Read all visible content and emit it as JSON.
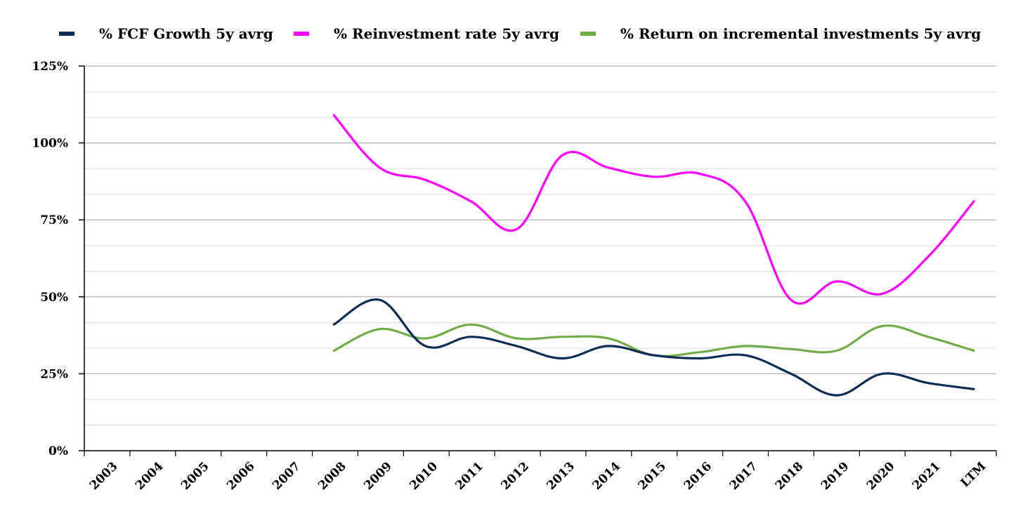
{
  "chart_data": {
    "type": "line",
    "title": "",
    "xlabel": "",
    "ylabel": "",
    "categories": [
      "2003",
      "2004",
      "2005",
      "2006",
      "2007",
      "2008",
      "2009",
      "2010",
      "2011",
      "2012",
      "2013",
      "2014",
      "2015",
      "2016",
      "2017",
      "2018",
      "2019",
      "2020",
      "2021",
      "LTM"
    ],
    "ylim": [
      0,
      125
    ],
    "yticks": [
      {
        "value": 0,
        "label": "0%"
      },
      {
        "value": 25,
        "label": "25%"
      },
      {
        "value": 50,
        "label": "50%"
      },
      {
        "value": 75,
        "label": "75%"
      },
      {
        "value": 100,
        "label": "100%"
      },
      {
        "value": 125,
        "label": "125%"
      }
    ],
    "minor_gridlines_step": 8.33,
    "grid": true,
    "legend_position": "top",
    "series": [
      {
        "name": "% FCF Growth 5y avrg",
        "color": "#0d2d56",
        "values": [
          null,
          null,
          null,
          null,
          null,
          41,
          49,
          34,
          37,
          34,
          30,
          34,
          31,
          30,
          31,
          25,
          18,
          25,
          22,
          20
        ]
      },
      {
        "name": "% Reinvestment rate 5y avrg",
        "color": "#ff00ff",
        "values": [
          null,
          null,
          null,
          null,
          null,
          109,
          92,
          88,
          81,
          72,
          96,
          92,
          89,
          90,
          81,
          49,
          55,
          51,
          63,
          81
        ]
      },
      {
        "name": "% Return on incremental investments 5y avrg",
        "color": "#70ad47",
        "values": [
          null,
          null,
          null,
          null,
          null,
          32.5,
          39.5,
          36.5,
          41,
          36.5,
          37,
          36.5,
          31,
          32,
          34,
          33,
          32.5,
          40.5,
          37,
          32.5
        ]
      }
    ]
  }
}
